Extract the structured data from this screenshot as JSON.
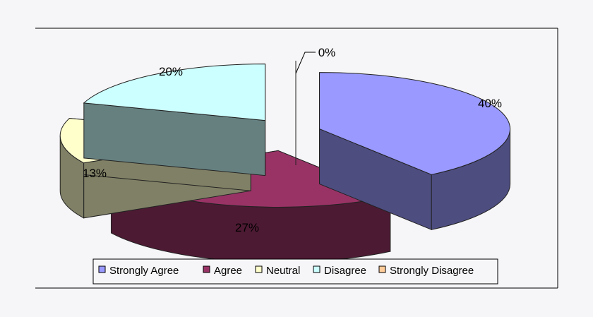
{
  "chart_data": {
    "type": "pie",
    "style": "3d-exploded",
    "categories": [
      "Strongly Agree",
      "Agree",
      "Neutral",
      "Disagree",
      "Strongly Disagree"
    ],
    "values": [
      40,
      27,
      13,
      20,
      0
    ],
    "value_labels": [
      "40%",
      "27%",
      "13%",
      "20%",
      "0%"
    ],
    "legend": {
      "placement": "bottom",
      "entries": [
        "Strongly Agree",
        "Agree",
        "Neutral",
        "Disagree",
        "Strongly Disagree"
      ]
    },
    "colors": {
      "top": [
        "#9999ff",
        "#993366",
        "#ffffcc",
        "#ccffff",
        "#ffcc99"
      ],
      "side": [
        "#4d4d80",
        "#4d1a33",
        "#808066",
        "#668080",
        "#806650"
      ]
    }
  }
}
